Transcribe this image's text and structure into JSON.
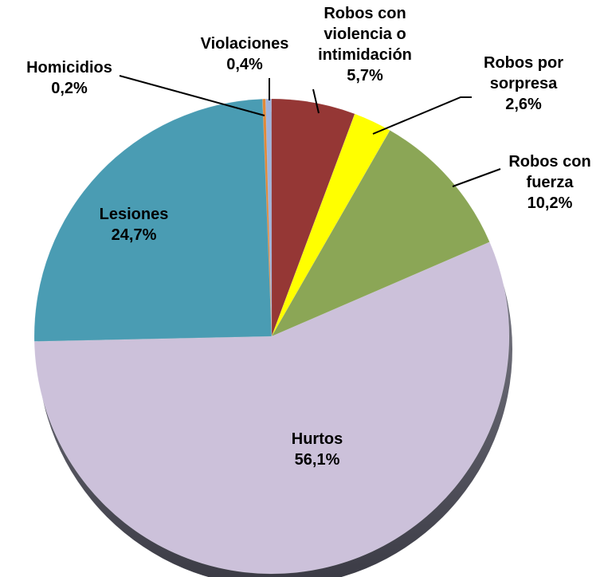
{
  "chart_data": {
    "type": "pie",
    "categories": [
      "Violaciones",
      "Robos con violencia o intimidación",
      "Robos por sorpresa",
      "Robos con fuerza",
      "Hurtos",
      "Lesiones",
      "Homicidios"
    ],
    "values": [
      0.4,
      5.7,
      2.6,
      10.2,
      56.1,
      24.7,
      0.2
    ],
    "value_labels": [
      "0,4%",
      "5,7%",
      "2,6%",
      "10,2%",
      "56,1%",
      "24,7%",
      "0,2%"
    ],
    "colors": [
      "#9fb3dc",
      "#953735",
      "#ffff00",
      "#8ba656",
      "#ccc1da",
      "#4a9cb3",
      "#e0893a"
    ]
  }
}
